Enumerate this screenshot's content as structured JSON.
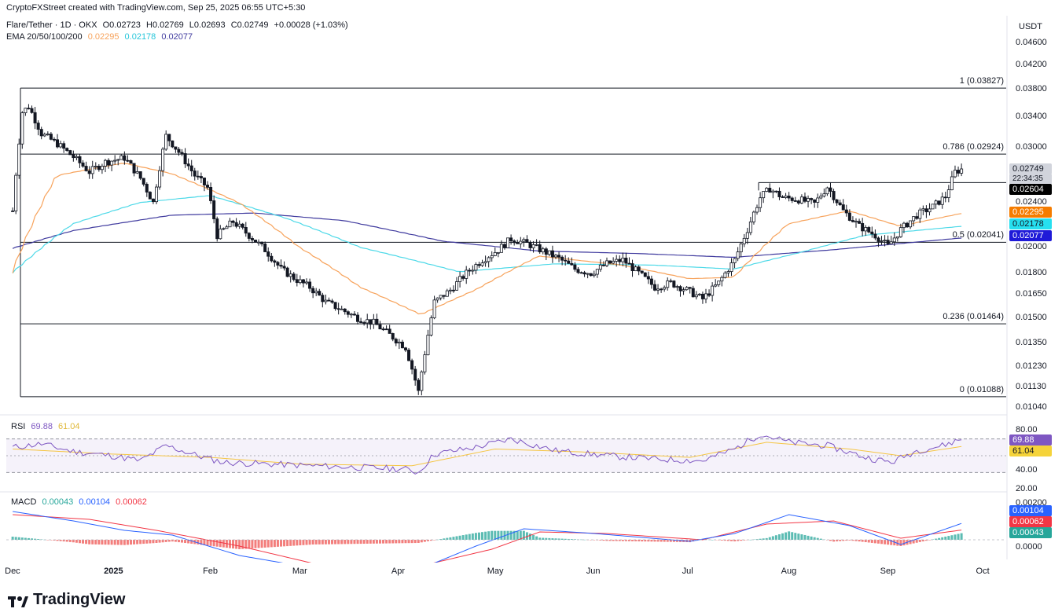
{
  "header": {
    "credit": "CryptoFXStreet created with TradingView.com, Sep 25, 2025 06:55 UTC+5:30",
    "symbol": "Flare/Tether · 1D · OKX",
    "ohlc": {
      "o": "O0.02723",
      "h": "H0.02769",
      "l": "L0.02693",
      "c": "C0.02749",
      "chg": "+0.00028 (+1.03%)"
    },
    "ema_label": "EMA 20/50/100/200",
    "ema_values": [
      "0.02295",
      "0.02178",
      "0.02077"
    ],
    "currency": "USDT"
  },
  "colors": {
    "up": "#131722",
    "down": "#131722",
    "ema20": "#f7a35c",
    "ema50": "#4dd9e8",
    "ema200": "#3f3a9e",
    "fib_line": "#131722",
    "rsi": "#7e57c2",
    "rsi_ma": "#f5c542",
    "macd": "#2962ff",
    "signal": "#f23645",
    "hist_pos": "#26a69a",
    "hist_neg": "#ef5350"
  },
  "price_axis": [
    "0.04600",
    "0.04200",
    "0.03800",
    "0.03400",
    "0.03000",
    "0.02400",
    "0.02000",
    "0.01800",
    "0.01650",
    "0.01500",
    "0.01350",
    "0.01230",
    "0.01130",
    "0.01040"
  ],
  "price_tags": [
    {
      "value": "0.02749",
      "sub": "22:34:35",
      "bg": "#d1d4dc",
      "fg": "#131722"
    },
    {
      "value": "0.02604",
      "bg": "#000000",
      "fg": "#ffffff"
    },
    {
      "value": "0.02295",
      "bg": "#f57c00",
      "fg": "#ffffff"
    },
    {
      "value": "0.02178",
      "bg": "#26e0f0",
      "fg": "#131722"
    },
    {
      "value": "0.02077",
      "bg": "#1f1ad8",
      "fg": "#ffffff"
    }
  ],
  "fib_levels": [
    {
      "label": "1 (0.03827)",
      "value": 0.03827
    },
    {
      "label": "0.786 (0.02924)",
      "value": 0.02924
    },
    {
      "label": "0.5 (0.02041)",
      "value": 0.02041
    },
    {
      "label": "0.236 (0.01464)",
      "value": 0.01464
    },
    {
      "label": "0 (0.01088)",
      "value": 0.01088
    }
  ],
  "resistance_level": 0.02604,
  "x_axis": [
    "Dec",
    "2025",
    "Feb",
    "Mar",
    "Apr",
    "May",
    "Jun",
    "Jul",
    "Aug",
    "Sep",
    "Oct"
  ],
  "rsi": {
    "label": "RSI",
    "value": "69.88",
    "ma": "61.04",
    "axis": [
      "80.00",
      "40.00",
      "20.00"
    ],
    "upper": 70,
    "lower": 30
  },
  "macd": {
    "label": "MACD",
    "hist": "0.00043",
    "macd": "0.00104",
    "signal": "0.00062",
    "axis": [
      "0.00200",
      "0.0000"
    ]
  },
  "logo_text": "TradingView",
  "chart_data": {
    "type": "candlestick",
    "title": "Flare/Tether · 1D · OKX",
    "ylabel": "USDT",
    "y_scale": "log",
    "ylim": [
      0.0102,
      0.047
    ],
    "x_range": [
      "2024-11-29",
      "2025-10-08"
    ],
    "ohlc_last": {
      "open": 0.02723,
      "high": 0.02769,
      "low": 0.02693,
      "close": 0.02749
    },
    "close_path": [
      [
        "2024-12-01",
        0.0232
      ],
      [
        "2024-12-04",
        0.0347
      ],
      [
        "2024-12-06",
        0.0355
      ],
      [
        "2024-12-10",
        0.0318
      ],
      [
        "2024-12-15",
        0.0305
      ],
      [
        "2024-12-20",
        0.0289
      ],
      [
        "2024-12-25",
        0.0272
      ],
      [
        "2024-12-30",
        0.0283
      ],
      [
        "2025-01-05",
        0.0288
      ],
      [
        "2025-01-10",
        0.0265
      ],
      [
        "2025-01-14",
        0.024
      ],
      [
        "2025-01-18",
        0.0315
      ],
      [
        "2025-01-22",
        0.0295
      ],
      [
        "2025-01-27",
        0.0268
      ],
      [
        "2025-01-31",
        0.0255
      ],
      [
        "2025-02-03",
        0.021
      ],
      [
        "2025-02-08",
        0.0222
      ],
      [
        "2025-02-13",
        0.021
      ],
      [
        "2025-02-18",
        0.0198
      ],
      [
        "2025-02-23",
        0.0183
      ],
      [
        "2025-02-28",
        0.0175
      ],
      [
        "2025-03-04",
        0.017
      ],
      [
        "2025-03-09",
        0.016
      ],
      [
        "2025-03-14",
        0.0155
      ],
      [
        "2025-03-19",
        0.015
      ],
      [
        "2025-03-24",
        0.0147
      ],
      [
        "2025-03-29",
        0.014
      ],
      [
        "2025-04-03",
        0.0133
      ],
      [
        "2025-04-07",
        0.0111
      ],
      [
        "2025-04-09",
        0.013
      ],
      [
        "2025-04-12",
        0.016
      ],
      [
        "2025-04-17",
        0.0168
      ],
      [
        "2025-04-22",
        0.018
      ],
      [
        "2025-04-27",
        0.019
      ],
      [
        "2025-05-02",
        0.0198
      ],
      [
        "2025-05-06",
        0.0207
      ],
      [
        "2025-05-11",
        0.0203
      ],
      [
        "2025-05-16",
        0.0197
      ],
      [
        "2025-05-21",
        0.0191
      ],
      [
        "2025-05-26",
        0.0183
      ],
      [
        "2025-05-31",
        0.018
      ],
      [
        "2025-06-05",
        0.0187
      ],
      [
        "2025-06-10",
        0.019
      ],
      [
        "2025-06-15",
        0.018
      ],
      [
        "2025-06-20",
        0.017
      ],
      [
        "2025-06-25",
        0.0173
      ],
      [
        "2025-06-30",
        0.0168
      ],
      [
        "2025-07-05",
        0.0162
      ],
      [
        "2025-07-10",
        0.0173
      ],
      [
        "2025-07-15",
        0.019
      ],
      [
        "2025-07-19",
        0.0215
      ],
      [
        "2025-07-23",
        0.0245
      ],
      [
        "2025-07-26",
        0.0254
      ],
      [
        "2025-07-30",
        0.0245
      ],
      [
        "2025-08-04",
        0.0243
      ],
      [
        "2025-08-09",
        0.0239
      ],
      [
        "2025-08-13",
        0.0256
      ],
      [
        "2025-08-18",
        0.0232
      ],
      [
        "2025-08-23",
        0.0218
      ],
      [
        "2025-08-28",
        0.021
      ],
      [
        "2025-09-01",
        0.0201
      ],
      [
        "2025-09-05",
        0.0215
      ],
      [
        "2025-09-10",
        0.0228
      ],
      [
        "2025-09-15",
        0.0236
      ],
      [
        "2025-09-19",
        0.0246
      ],
      [
        "2025-09-22",
        0.0272
      ],
      [
        "2025-09-24",
        0.02749
      ]
    ],
    "ema20_path": [
      [
        "2024-12-01",
        0.018
      ],
      [
        "2024-12-15",
        0.0268
      ],
      [
        "2025-01-05",
        0.0282
      ],
      [
        "2025-01-20",
        0.027
      ],
      [
        "2025-02-10",
        0.024
      ],
      [
        "2025-03-01",
        0.02
      ],
      [
        "2025-03-20",
        0.017
      ],
      [
        "2025-04-08",
        0.0152
      ],
      [
        "2025-04-25",
        0.0168
      ],
      [
        "2025-05-15",
        0.0193
      ],
      [
        "2025-06-10",
        0.0186
      ],
      [
        "2025-07-01",
        0.0176
      ],
      [
        "2025-07-15",
        0.0177
      ],
      [
        "2025-08-01",
        0.022
      ],
      [
        "2025-08-20",
        0.0232
      ],
      [
        "2025-09-05",
        0.0218
      ],
      [
        "2025-09-24",
        0.02295
      ]
    ],
    "ema50_path": [
      [
        "2024-12-01",
        0.018
      ],
      [
        "2024-12-20",
        0.022
      ],
      [
        "2025-01-10",
        0.024
      ],
      [
        "2025-02-01",
        0.0247
      ],
      [
        "2025-02-25",
        0.0225
      ],
      [
        "2025-03-20",
        0.02
      ],
      [
        "2025-04-20",
        0.0181
      ],
      [
        "2025-05-20",
        0.0187
      ],
      [
        "2025-06-20",
        0.0186
      ],
      [
        "2025-07-15",
        0.0183
      ],
      [
        "2025-08-05",
        0.0196
      ],
      [
        "2025-08-25",
        0.021
      ],
      [
        "2025-09-24",
        0.02178
      ]
    ],
    "ema200_path": [
      [
        "2024-12-01",
        0.0199
      ],
      [
        "2024-12-20",
        0.0214
      ],
      [
        "2025-01-20",
        0.0228
      ],
      [
        "2025-02-15",
        0.023
      ],
      [
        "2025-03-15",
        0.0223
      ],
      [
        "2025-04-15",
        0.0205
      ],
      [
        "2025-05-15",
        0.0197
      ],
      [
        "2025-06-15",
        0.0195
      ],
      [
        "2025-07-15",
        0.0192
      ],
      [
        "2025-08-15",
        0.0198
      ],
      [
        "2025-09-24",
        0.02077
      ]
    ],
    "rsi_path": [
      [
        "2024-12-01",
        60
      ],
      [
        "2024-12-10",
        64
      ],
      [
        "2024-12-20",
        55
      ],
      [
        "2025-01-01",
        50
      ],
      [
        "2025-01-10",
        44
      ],
      [
        "2025-01-18",
        62
      ],
      [
        "2025-01-28",
        50
      ],
      [
        "2025-02-05",
        42
      ],
      [
        "2025-02-20",
        40
      ],
      [
        "2025-03-05",
        38
      ],
      [
        "2025-03-20",
        36
      ],
      [
        "2025-04-03",
        34
      ],
      [
        "2025-04-07",
        30
      ],
      [
        "2025-04-12",
        52
      ],
      [
        "2025-04-25",
        60
      ],
      [
        "2025-05-06",
        70
      ],
      [
        "2025-05-20",
        56
      ],
      [
        "2025-06-05",
        50
      ],
      [
        "2025-06-20",
        46
      ],
      [
        "2025-07-05",
        44
      ],
      [
        "2025-07-15",
        58
      ],
      [
        "2025-07-23",
        76
      ],
      [
        "2025-08-01",
        66
      ],
      [
        "2025-08-13",
        62
      ],
      [
        "2025-08-25",
        48
      ],
      [
        "2025-09-02",
        42
      ],
      [
        "2025-09-10",
        56
      ],
      [
        "2025-09-18",
        62
      ],
      [
        "2025-09-24",
        69.88
      ]
    ],
    "rsi_ma_path": [
      [
        "2024-12-01",
        58
      ],
      [
        "2025-01-01",
        52
      ],
      [
        "2025-02-01",
        48
      ],
      [
        "2025-03-01",
        40
      ],
      [
        "2025-04-05",
        38
      ],
      [
        "2025-05-01",
        58
      ],
      [
        "2025-06-01",
        54
      ],
      [
        "2025-07-01",
        48
      ],
      [
        "2025-07-25",
        66
      ],
      [
        "2025-08-20",
        58
      ],
      [
        "2025-09-05",
        50
      ],
      [
        "2025-09-24",
        61.04
      ]
    ],
    "macd_path": [
      [
        "2024-12-01",
        0.0018
      ],
      [
        "2024-12-20",
        0.0012
      ],
      [
        "2025-01-05",
        0.0006
      ],
      [
        "2025-01-20",
        0.0003
      ],
      [
        "2025-02-10",
        -0.001
      ],
      [
        "2025-03-05",
        -0.0018
      ],
      [
        "2025-04-07",
        -0.0019
      ],
      [
        "2025-04-25",
        -0.0004
      ],
      [
        "2025-05-10",
        0.0007
      ],
      [
        "2025-06-01",
        0.0004
      ],
      [
        "2025-07-01",
        -0.0001
      ],
      [
        "2025-07-15",
        0.0004
      ],
      [
        "2025-08-01",
        0.0016
      ],
      [
        "2025-08-20",
        0.0009
      ],
      [
        "2025-09-05",
        -0.0003
      ],
      [
        "2025-09-15",
        0.0004
      ],
      [
        "2025-09-24",
        0.00104
      ]
    ],
    "signal_path": [
      [
        "2024-12-01",
        0.0016
      ],
      [
        "2024-12-25",
        0.0013
      ],
      [
        "2025-01-15",
        0.0006
      ],
      [
        "2025-02-10",
        -0.0004
      ],
      [
        "2025-03-05",
        -0.0015
      ],
      [
        "2025-04-07",
        -0.0017
      ],
      [
        "2025-04-30",
        -0.0006
      ],
      [
        "2025-05-15",
        0.0005
      ],
      [
        "2025-06-05",
        0.0004
      ],
      [
        "2025-07-05",
        0.0
      ],
      [
        "2025-07-25",
        0.001
      ],
      [
        "2025-08-15",
        0.0012
      ],
      [
        "2025-09-05",
        0.0001
      ],
      [
        "2025-09-24",
        0.00062
      ]
    ]
  }
}
